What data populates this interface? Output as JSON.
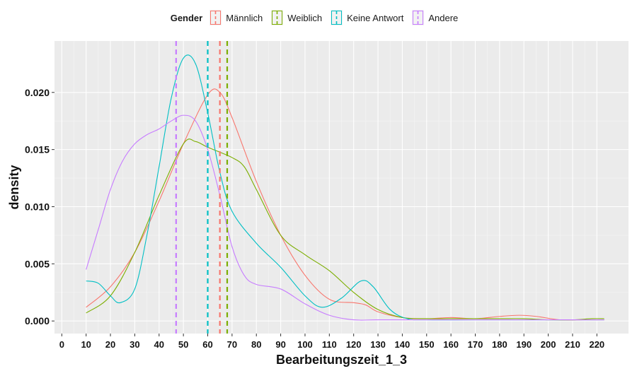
{
  "chart_data": {
    "type": "line",
    "title": "",
    "xlabel": "Bearbeitungszeit_1_3",
    "ylabel": "density",
    "xlim": [
      -3,
      233
    ],
    "ylim": [
      -0.0011,
      0.0245
    ],
    "x_ticks": [
      0,
      10,
      20,
      30,
      40,
      50,
      60,
      70,
      80,
      90,
      100,
      110,
      120,
      130,
      140,
      150,
      160,
      170,
      180,
      190,
      200,
      210,
      220
    ],
    "y_ticks": [
      0.0,
      0.005,
      0.01,
      0.015,
      0.02
    ],
    "y_tick_labels": [
      "0.000",
      "0.005",
      "0.010",
      "0.015",
      "0.020"
    ],
    "legend": {
      "title": "Gender",
      "position": "top"
    },
    "grid": true,
    "series": [
      {
        "name": "Männlich",
        "color": "#F8766D",
        "mean": 65,
        "points": [
          [
            10,
            0.0012
          ],
          [
            20,
            0.003
          ],
          [
            30,
            0.006
          ],
          [
            40,
            0.0105
          ],
          [
            50,
            0.0155
          ],
          [
            60,
            0.0198
          ],
          [
            65,
            0.02
          ],
          [
            70,
            0.0178
          ],
          [
            80,
            0.0122
          ],
          [
            90,
            0.0075
          ],
          [
            100,
            0.004
          ],
          [
            110,
            0.0019
          ],
          [
            120,
            0.0016
          ],
          [
            125,
            0.0014
          ],
          [
            130,
            0.0008
          ],
          [
            140,
            0.0003
          ],
          [
            150,
            0.0002
          ],
          [
            160,
            0.0003
          ],
          [
            170,
            0.0002
          ],
          [
            180,
            0.0004
          ],
          [
            188,
            0.0005
          ],
          [
            195,
            0.0004
          ],
          [
            205,
            0.0001
          ],
          [
            215,
            0.0001
          ],
          [
            223,
            0.0001
          ]
        ]
      },
      {
        "name": "Weiblich",
        "color": "#7CAE00",
        "mean": 68,
        "points": [
          [
            10,
            0.0007
          ],
          [
            20,
            0.0022
          ],
          [
            30,
            0.006
          ],
          [
            40,
            0.011
          ],
          [
            50,
            0.0155
          ],
          [
            55,
            0.0157
          ],
          [
            60,
            0.0152
          ],
          [
            70,
            0.0143
          ],
          [
            75,
            0.0135
          ],
          [
            80,
            0.0115
          ],
          [
            90,
            0.0075
          ],
          [
            100,
            0.0058
          ],
          [
            110,
            0.0044
          ],
          [
            120,
            0.0025
          ],
          [
            130,
            0.001
          ],
          [
            140,
            0.0003
          ],
          [
            150,
            0.0002
          ],
          [
            160,
            0.0002
          ],
          [
            170,
            0.0002
          ],
          [
            180,
            0.0002
          ],
          [
            190,
            0.0002
          ],
          [
            200,
            0.0001
          ],
          [
            210,
            0.0001
          ],
          [
            218,
            0.0002
          ],
          [
            223,
            0.0002
          ]
        ]
      },
      {
        "name": "Keine Antwort",
        "color": "#00BFC4",
        "mean": 60,
        "points": [
          [
            10,
            0.0035
          ],
          [
            15,
            0.0033
          ],
          [
            20,
            0.0022
          ],
          [
            24,
            0.0016
          ],
          [
            30,
            0.0028
          ],
          [
            35,
            0.0075
          ],
          [
            40,
            0.0135
          ],
          [
            45,
            0.0195
          ],
          [
            50,
            0.023
          ],
          [
            55,
            0.0225
          ],
          [
            60,
            0.0182
          ],
          [
            65,
            0.013
          ],
          [
            70,
            0.0096
          ],
          [
            80,
            0.0068
          ],
          [
            90,
            0.0047
          ],
          [
            100,
            0.0022
          ],
          [
            107,
            0.0012
          ],
          [
            115,
            0.002
          ],
          [
            123,
            0.0035
          ],
          [
            128,
            0.003
          ],
          [
            135,
            0.001
          ],
          [
            142,
            0.0002
          ],
          [
            150,
            0.0001
          ],
          [
            170,
            0.0001
          ],
          [
            200,
            0.0001
          ],
          [
            223,
            0.0001
          ]
        ]
      },
      {
        "name": "Andere",
        "color": "#C77CFF",
        "mean": 47,
        "points": [
          [
            10,
            0.0045
          ],
          [
            15,
            0.008
          ],
          [
            20,
            0.0115
          ],
          [
            25,
            0.014
          ],
          [
            30,
            0.0155
          ],
          [
            35,
            0.0163
          ],
          [
            40,
            0.0168
          ],
          [
            45,
            0.0175
          ],
          [
            50,
            0.018
          ],
          [
            55,
            0.0175
          ],
          [
            60,
            0.015
          ],
          [
            65,
            0.011
          ],
          [
            70,
            0.0065
          ],
          [
            75,
            0.004
          ],
          [
            80,
            0.0032
          ],
          [
            90,
            0.0028
          ],
          [
            100,
            0.0015
          ],
          [
            110,
            0.0005
          ],
          [
            120,
            0.0001
          ],
          [
            130,
            0.0001
          ],
          [
            150,
            0.0001
          ],
          [
            200,
            0.0001
          ],
          [
            223,
            0.0001
          ]
        ]
      }
    ]
  }
}
